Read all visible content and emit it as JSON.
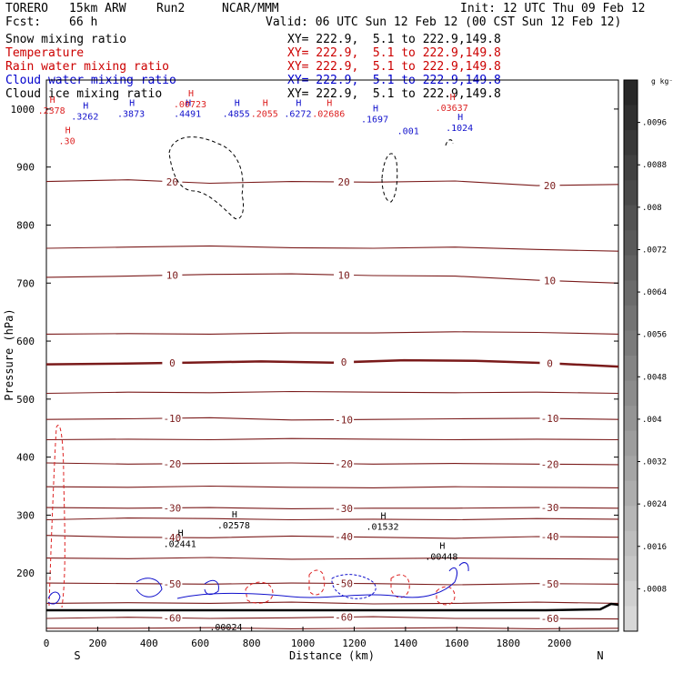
{
  "header": {
    "model": "TORERO",
    "resolution": "15km ARW",
    "run": "Run2",
    "org": "NCAR/MMM",
    "init": "Init: 12 UTC Thu 09 Feb 12",
    "fcst_label": "Fcst:",
    "fcst_value": "66 h",
    "valid": "Valid: 06 UTC Sun 12 Feb 12 (00 CST Sun 12 Feb 12)"
  },
  "legend": [
    {
      "label": "Snow mixing ratio",
      "xy": "XY= 222.9,  5.1 to 222.9,149.8",
      "color": "#000000"
    },
    {
      "label": "Temperature",
      "xy": "XY= 222.9,  5.1 to 222.9,149.8",
      "color": "#cc0000"
    },
    {
      "label": "Rain water mixing ratio",
      "xy": "XY= 222.9,  5.1 to 222.9,149.8",
      "color": "#cc0000"
    },
    {
      "label": "Cloud water mixing ratio",
      "xy": "XY= 222.9,  5.1 to 222.9,149.8",
      "color": "#0000cc"
    },
    {
      "label": "Cloud ice mixing ratio",
      "xy": "XY= 222.9,  5.1 to 222.9,149.8",
      "color": "#000000"
    }
  ],
  "colors": {
    "isotherm": "#7a1a1a",
    "zero_isotherm": "#7a1a1a",
    "rain": "#dd2222",
    "cloud_water": "#1111cc",
    "snow": "#000000"
  },
  "chart_data": {
    "type": "cross-section",
    "xlabel": "Distance (km)",
    "ylabel": "Pressure (hPa)",
    "xlim": [
      0,
      2230
    ],
    "ylim": [
      1050,
      100
    ],
    "x_ticks": [
      0,
      200,
      400,
      600,
      800,
      1000,
      1200,
      1400,
      1600,
      1800,
      2000
    ],
    "y_ticks": [
      200,
      300,
      400,
      500,
      600,
      700,
      800,
      900,
      1000
    ],
    "y_tick_labels": [
      "200",
      "300",
      "400",
      "500",
      "600",
      "700",
      "800",
      "900",
      "1000"
    ],
    "x_ends": {
      "left": "S",
      "right": "N"
    },
    "colorbar": {
      "unit": "g kg⁻¹",
      "labels": [
        ".0096",
        ".0088",
        ".008",
        ".0072",
        ".0064",
        ".0056",
        ".0048",
        ".004",
        ".0032",
        ".0024",
        ".0016",
        ".0008"
      ],
      "values": [
        0.0096,
        0.0088,
        0.008,
        0.0072,
        0.0064,
        0.0056,
        0.0048,
        0.004,
        0.0032,
        0.0024,
        0.0016,
        0.0008
      ]
    },
    "isotherms": [
      {
        "temp": -65,
        "label": "",
        "p": [
          105,
          105,
          106,
          104,
          105,
          106,
          104,
          105
        ]
      },
      {
        "temp": -60,
        "label": "-60",
        "p": [
          122,
          124,
          122,
          123,
          125,
          122,
          122,
          121
        ]
      },
      {
        "temp": -55,
        "label": "",
        "p": [
          148,
          149,
          148,
          150,
          147,
          148,
          150,
          148
        ]
      },
      {
        "temp": -50,
        "label": "-50",
        "p": [
          183,
          182,
          181,
          183,
          182,
          180,
          182,
          181
        ]
      },
      {
        "temp": -45,
        "label": "",
        "p": [
          226,
          225,
          227,
          224,
          225,
          226,
          225,
          224
        ]
      },
      {
        "temp": -40,
        "label": "-40",
        "p": [
          265,
          262,
          261,
          264,
          262,
          260,
          263,
          262
        ]
      },
      {
        "temp": -35,
        "label": "",
        "p": [
          292,
          295,
          294,
          292,
          293,
          292,
          294,
          293
        ]
      },
      {
        "temp": -30,
        "label": "-30",
        "p": [
          313,
          312,
          313,
          311,
          312,
          312,
          313,
          312
        ]
      },
      {
        "temp": -25,
        "label": "",
        "p": [
          349,
          348,
          350,
          348,
          347,
          349,
          348,
          347
        ]
      },
      {
        "temp": -20,
        "label": "-20",
        "p": [
          390,
          388,
          389,
          390,
          388,
          389,
          388,
          387
        ]
      },
      {
        "temp": -15,
        "label": "",
        "p": [
          430,
          431,
          430,
          432,
          431,
          430,
          431,
          430
        ]
      },
      {
        "temp": -10,
        "label": "-10",
        "p": [
          465,
          466,
          468,
          464,
          465,
          466,
          467,
          465
        ]
      },
      {
        "temp": -5,
        "label": "",
        "p": [
          510,
          512,
          511,
          513,
          512,
          511,
          512,
          510
        ]
      },
      {
        "temp": 0,
        "label": "0",
        "p": [
          560,
          561,
          563,
          565,
          563,
          567,
          566,
          562,
          556
        ]
      },
      {
        "temp": 5,
        "label": "",
        "p": [
          612,
          613,
          612,
          614,
          614,
          616,
          615,
          612
        ]
      },
      {
        "temp": 10,
        "label": "10",
        "p": [
          710,
          712,
          715,
          716,
          713,
          712,
          705,
          700
        ]
      },
      {
        "temp": 15,
        "label": "",
        "p": [
          760,
          762,
          764,
          761,
          760,
          762,
          758,
          755
        ]
      },
      {
        "temp": 20,
        "label": "20",
        "p": [
          875,
          878,
          872,
          875,
          874,
          876,
          868,
          870
        ]
      }
    ],
    "maxima": [
      {
        "system": "snow",
        "label": ".02441",
        "x": 520,
        "p": 248
      },
      {
        "system": "snow",
        "label": ".02578",
        "x": 730,
        "p": 280
      },
      {
        "system": "snow",
        "label": ".01532",
        "x": 1310,
        "p": 278
      },
      {
        "system": "snow",
        "label": ".00448",
        "x": 1540,
        "p": 226
      },
      {
        "system": "snow",
        "label": ".00024",
        "x": 700,
        "p": 105
      },
      {
        "system": "cloud_water",
        "label": ".3262",
        "x": 150,
        "p": 985
      },
      {
        "system": "cloud_water",
        "label": ".3873",
        "x": 330,
        "p": 990
      },
      {
        "system": "cloud_water",
        "label": ".4491",
        "x": 550,
        "p": 990
      },
      {
        "system": "cloud_water",
        "label": ".4855",
        "x": 740,
        "p": 990
      },
      {
        "system": "cloud_water",
        "label": ".6272",
        "x": 980,
        "p": 990
      },
      {
        "system": "cloud_water",
        "label": ".1697",
        "x": 1280,
        "p": 980
      },
      {
        "system": "cloud_water",
        "label": ".001",
        "x": 1410,
        "p": 960
      },
      {
        "system": "cloud_water",
        "label": ".1024",
        "x": 1610,
        "p": 965
      },
      {
        "system": "rain",
        "label": ".2378",
        "x": 20,
        "p": 995
      },
      {
        "system": "rain",
        "label": ".30",
        "x": 80,
        "p": 943
      },
      {
        "system": "rain",
        "label": ".00723",
        "x": 560,
        "p": 1006
      },
      {
        "system": "rain",
        "label": ".2055",
        "x": 850,
        "p": 990
      },
      {
        "system": "rain",
        "label": ".02686",
        "x": 1100,
        "p": 990
      },
      {
        "system": "rain",
        "label": ".03637",
        "x": 1580,
        "p": 1000
      }
    ]
  }
}
